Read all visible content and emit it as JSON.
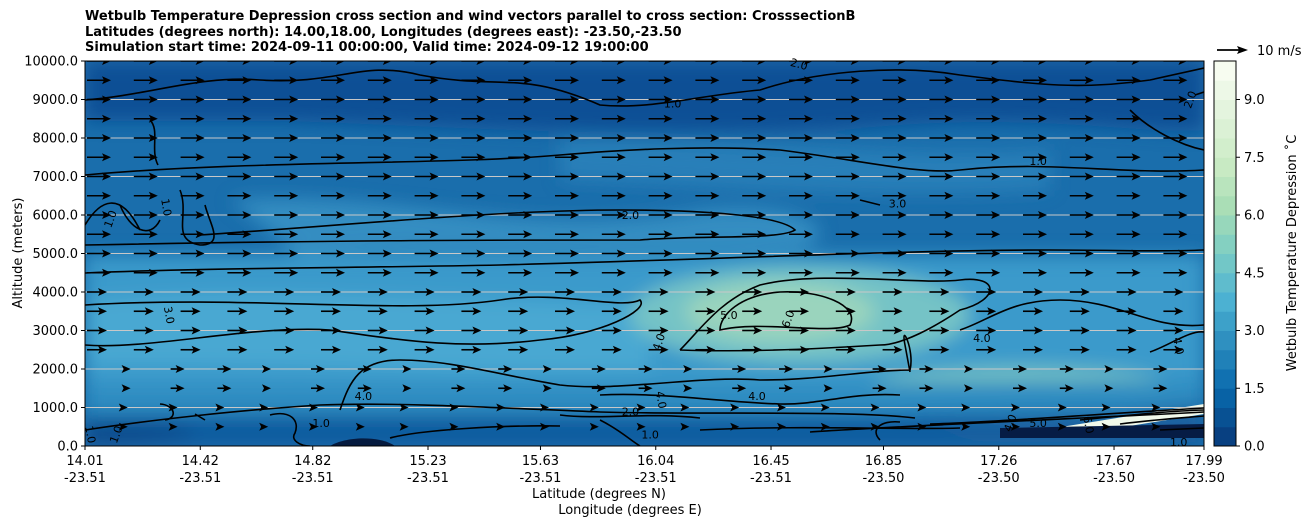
{
  "chart_data": {
    "type": "contour",
    "title_lines": [
      "Wetbulb Temperature Depression cross section and wind vectors parallel to cross section: CrosssectionB",
      "Latitudes (degrees north): 14.00,18.00, Longitudes (degrees east): -23.50,-23.50",
      "Simulation start time: 2024-09-11 00:00:00, Valid time: 2024-09-12 19:00:00"
    ],
    "ylabel": "Altitude (meters)",
    "xlabel_lat": "Latitude (degrees N)",
    "xlabel_lon": "Longitude (degrees E)",
    "ylim": [
      0,
      10000
    ],
    "y_ticks": [
      "0.0",
      "1000.0",
      "2000.0",
      "3000.0",
      "4000.0",
      "5000.0",
      "6000.0",
      "7000.0",
      "8000.0",
      "9000.0",
      "10000.0"
    ],
    "x_ticks_lat": [
      "14.01",
      "14.42",
      "14.82",
      "15.23",
      "15.63",
      "16.04",
      "16.45",
      "16.85",
      "17.26",
      "17.67",
      "17.99"
    ],
    "x_ticks_lon": [
      "-23.51",
      "-23.51",
      "-23.51",
      "-23.51",
      "-23.51",
      "-23.51",
      "-23.51",
      "-23.50",
      "-23.50",
      "-23.50",
      "-23.50"
    ],
    "colorbar": {
      "label": "Wetbulb Temperature Depression ˚C",
      "ticks": [
        "0.0",
        "1.5",
        "3.0",
        "4.5",
        "6.0",
        "7.5",
        "9.0"
      ],
      "range": [
        0,
        10
      ],
      "colors": [
        "#084081",
        "#0868ac",
        "#2b8cbe",
        "#4eb3d3",
        "#7bccc4",
        "#a8ddb5",
        "#ccebc5",
        "#e0f3db",
        "#f7fcf0"
      ]
    },
    "wind_key": "10 m/s",
    "contour_labels": [
      {
        "text": "1.0",
        "lat": 16.1,
        "alt": 8900
      },
      {
        "text": "1.0",
        "lat": 17.4,
        "alt": 7400
      },
      {
        "text": "1.0",
        "lat": 14.1,
        "alt": 5900
      },
      {
        "text": "1.0",
        "lat": 14.3,
        "alt": 6200
      },
      {
        "text": "2.0",
        "lat": 15.95,
        "alt": 6000
      },
      {
        "text": "2.0",
        "lat": 15.95,
        "alt": 900
      },
      {
        "text": "2.0",
        "lat": 17.94,
        "alt": 9000
      },
      {
        "text": "3.0",
        "lat": 14.31,
        "alt": 3400
      },
      {
        "text": "3.0",
        "lat": 16.9,
        "alt": 6300
      },
      {
        "text": "4.0",
        "lat": 15.0,
        "alt": 1300
      },
      {
        "text": "4.0",
        "lat": 16.05,
        "alt": 2700
      },
      {
        "text": "4.0",
        "lat": 16.06,
        "alt": 1200
      },
      {
        "text": "4.0",
        "lat": 16.4,
        "alt": 1300
      },
      {
        "text": "4.0",
        "lat": 17.2,
        "alt": 2800
      },
      {
        "text": "4.0",
        "lat": 17.3,
        "alt": 600
      },
      {
        "text": "4.0",
        "lat": 17.9,
        "alt": 2600
      },
      {
        "text": "5.0",
        "lat": 16.3,
        "alt": 3400
      },
      {
        "text": "5.0",
        "lat": 17.4,
        "alt": 600
      },
      {
        "text": "6.0",
        "lat": 16.51,
        "alt": 3300
      },
      {
        "text": "6.0",
        "lat": 17.58,
        "alt": 550
      },
      {
        "text": "1.0",
        "lat": 16.02,
        "alt": 300
      },
      {
        "text": "1.0",
        "lat": 14.85,
        "alt": 600
      },
      {
        "text": "1.0",
        "lat": 14.12,
        "alt": 300
      },
      {
        "text": "1.0",
        "lat": 14.03,
        "alt": 300
      },
      {
        "text": "1.0",
        "lat": 17.9,
        "alt": 100
      }
    ],
    "annotations": {
      "top_partial": "2.0"
    }
  }
}
